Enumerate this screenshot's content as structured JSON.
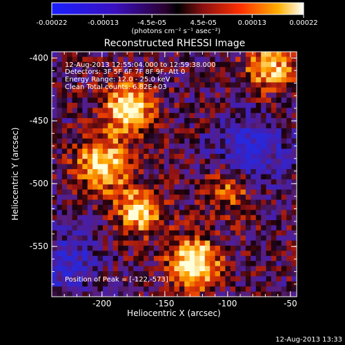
{
  "colorbar": {
    "tick_labels": [
      "-0.00022",
      "-0.00013",
      "-4.5e-05",
      "4.5e-05",
      "0.00013",
      "0.00022"
    ],
    "tick_values": [
      -0.00022,
      -0.00013,
      -4.5e-05,
      4.5e-05,
      0.00013,
      0.00022
    ],
    "range": [
      -0.00022,
      0.00022
    ],
    "unit_label": "(photons cm⁻² s⁻¹ asec⁻²)"
  },
  "chart_data": {
    "type": "heatmap",
    "title": "Reconstructed RHESSI Image",
    "xlabel": "Heliocentric X (arcsec)",
    "ylabel": "Heliocentric Y (arcsec)",
    "xlim": [
      -240,
      -45
    ],
    "ylim": [
      -590,
      -395
    ],
    "x_ticks": [
      -200,
      -150,
      -100,
      -50
    ],
    "x_tick_labels": [
      "-200",
      "-150",
      "-100",
      "-50"
    ],
    "y_ticks": [
      -400,
      -450,
      -500,
      -550
    ],
    "y_tick_labels": [
      "-400",
      "-450",
      "-500",
      "-550"
    ],
    "annotations": [
      "12-Aug-2013 12:55:04.000 to 12:59:38.000",
      "Detectors: 3F 5F 6F 7F 8F 9F, Att 0",
      "Energy Range: 12.0 - 25.0 keV",
      "Clean     Total counts: 6.82E+03"
    ],
    "peak_label": "Position of Peak = [-122,-573]",
    "peak": [
      -122,
      -573
    ],
    "grid": false
  },
  "footer": {
    "timestamp": "12-Aug-2013 13:33"
  }
}
